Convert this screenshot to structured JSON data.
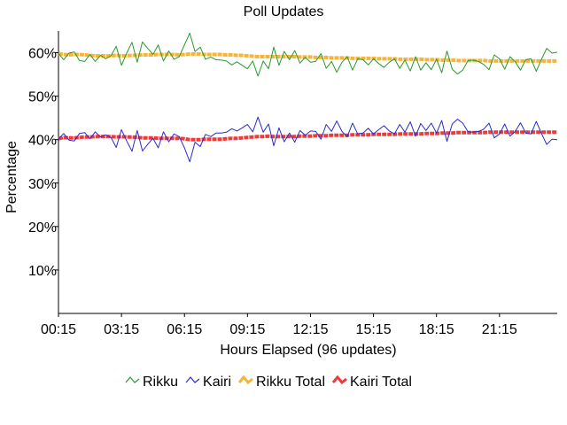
{
  "chart_data": {
    "type": "line",
    "title": "Poll Updates",
    "xlabel": "Hours Elapsed (96 updates)",
    "ylabel": "Percentage",
    "xlim": [
      0,
      95
    ],
    "ylim": [
      0,
      65
    ],
    "yticks": [
      {
        "value": 10,
        "label": "10%"
      },
      {
        "value": 20,
        "label": "20%"
      },
      {
        "value": 30,
        "label": "30%"
      },
      {
        "value": 40,
        "label": "40%"
      },
      {
        "value": 50,
        "label": "50%"
      },
      {
        "value": 60,
        "label": "60%"
      }
    ],
    "xticks": [
      {
        "value": 0,
        "label": "00:15"
      },
      {
        "value": 12,
        "label": "03:15"
      },
      {
        "value": 24,
        "label": "06:15"
      },
      {
        "value": 36,
        "label": "09:15"
      },
      {
        "value": 48,
        "label": "12:15"
      },
      {
        "value": 60,
        "label": "15:15"
      },
      {
        "value": 72,
        "label": "18:15"
      },
      {
        "value": 84,
        "label": "21:15"
      }
    ],
    "grid": false,
    "legend": "bottom",
    "series": [
      {
        "name": "Rikku",
        "color": "#2a9a2a",
        "style": "thin",
        "values": [
          59.8,
          58.4,
          59.9,
          60.2,
          58.2,
          58.0,
          59.6,
          58.0,
          59.4,
          58.6,
          59.3,
          61.5,
          57.1,
          59.9,
          62.4,
          57.8,
          62.5,
          61.0,
          59.6,
          61.8,
          58.1,
          60.4,
          58.5,
          59.1,
          61.8,
          64.5,
          60.3,
          61.3,
          58.5,
          59.0,
          58.4,
          58.3,
          58.1,
          57.2,
          57.9,
          57.1,
          56.3,
          58.1,
          54.6,
          58.1,
          56.3,
          61.3,
          57.1,
          60.3,
          58.4,
          60.5,
          57.6,
          58.9,
          57.8,
          58.0,
          59.8,
          56.4,
          58.0,
          55.5,
          57.8,
          59.1,
          56.0,
          58.6,
          58.4,
          57.2,
          58.6,
          57.5,
          56.6,
          57.8,
          58.6,
          56.4,
          58.3,
          55.8,
          59.1,
          56.0,
          57.7,
          56.1,
          58.5,
          55.4,
          60.4,
          56.2,
          55.1,
          56.0,
          58.2,
          58.3,
          58.0,
          57.3,
          56.1,
          59.5,
          58.6,
          56.2,
          59.1,
          57.9,
          56.0,
          58.4,
          58.6,
          55.7,
          58.5,
          61.0,
          59.9,
          60.1
        ]
      },
      {
        "name": "Kairi",
        "color": "#2a2ad0",
        "style": "thin",
        "values": [
          40.2,
          41.4,
          39.9,
          39.7,
          41.4,
          41.6,
          40.2,
          41.8,
          40.6,
          41.1,
          40.5,
          38.2,
          42.3,
          39.7,
          37.3,
          42.1,
          37.4,
          38.9,
          40.3,
          38.1,
          41.8,
          39.5,
          41.3,
          40.7,
          38.1,
          34.9,
          39.4,
          38.4,
          41.2,
          40.7,
          41.5,
          41.5,
          41.7,
          42.5,
          42.0,
          42.7,
          43.5,
          41.8,
          45.2,
          41.7,
          43.6,
          38.6,
          42.7,
          39.5,
          41.5,
          39.4,
          42.1,
          41.0,
          42.0,
          41.9,
          40.1,
          43.5,
          41.9,
          44.3,
          41.9,
          40.6,
          43.8,
          41.3,
          41.5,
          42.6,
          41.3,
          42.3,
          43.2,
          42.0,
          41.3,
          43.5,
          41.7,
          44.1,
          40.8,
          43.7,
          42.1,
          43.8,
          41.5,
          44.4,
          39.6,
          43.6,
          44.7,
          43.8,
          41.8,
          41.7,
          41.9,
          42.4,
          43.8,
          40.4,
          41.3,
          43.6,
          40.8,
          41.9,
          43.9,
          41.5,
          41.3,
          44.2,
          41.4,
          38.9,
          40.1,
          40.0
        ]
      },
      {
        "name": "Rikku Total",
        "color": "#f5b43a",
        "style": "thick",
        "values": [
          59.8,
          59.6,
          59.5,
          59.6,
          59.6,
          59.5,
          59.4,
          59.3,
          59.3,
          59.3,
          59.3,
          59.4,
          59.3,
          59.3,
          59.4,
          59.4,
          59.5,
          59.5,
          59.5,
          59.6,
          59.6,
          59.6,
          59.6,
          59.5,
          59.6,
          59.7,
          59.7,
          59.7,
          59.6,
          59.6,
          59.6,
          59.6,
          59.5,
          59.5,
          59.4,
          59.4,
          59.3,
          59.2,
          59.1,
          59.1,
          59.1,
          59.1,
          59.1,
          59.1,
          59.1,
          59.1,
          59.0,
          59.0,
          59.0,
          58.9,
          58.9,
          58.9,
          58.8,
          58.8,
          58.8,
          58.8,
          58.7,
          58.7,
          58.7,
          58.7,
          58.7,
          58.6,
          58.6,
          58.6,
          58.6,
          58.5,
          58.5,
          58.5,
          58.5,
          58.5,
          58.4,
          58.4,
          58.4,
          58.3,
          58.3,
          58.3,
          58.2,
          58.2,
          58.2,
          58.2,
          58.2,
          58.2,
          58.1,
          58.1,
          58.1,
          58.1,
          58.1,
          58.1,
          58.1,
          58.1,
          58.1,
          58.1,
          58.1,
          58.1,
          58.1,
          58.1
        ]
      },
      {
        "name": "Kairi Total",
        "color": "#f03a3a",
        "style": "thick",
        "values": [
          40.2,
          40.5,
          40.4,
          40.4,
          40.5,
          40.6,
          40.6,
          40.7,
          40.7,
          40.7,
          40.7,
          40.6,
          40.7,
          40.6,
          40.6,
          40.5,
          40.4,
          40.4,
          40.4,
          40.3,
          40.3,
          40.3,
          40.3,
          40.3,
          40.2,
          40.0,
          40.0,
          40.0,
          40.1,
          40.1,
          40.1,
          40.1,
          40.2,
          40.3,
          40.3,
          40.4,
          40.5,
          40.6,
          40.7,
          40.7,
          40.8,
          40.7,
          40.7,
          40.7,
          40.7,
          40.7,
          40.8,
          40.8,
          40.8,
          40.9,
          40.9,
          40.9,
          41.0,
          41.0,
          41.0,
          41.0,
          41.1,
          41.1,
          41.1,
          41.1,
          41.2,
          41.2,
          41.2,
          41.2,
          41.2,
          41.3,
          41.3,
          41.3,
          41.3,
          41.3,
          41.4,
          41.4,
          41.4,
          41.5,
          41.5,
          41.5,
          41.6,
          41.6,
          41.6,
          41.6,
          41.6,
          41.6,
          41.7,
          41.7,
          41.7,
          41.7,
          41.7,
          41.7,
          41.7,
          41.7,
          41.7,
          41.7,
          41.7,
          41.7,
          41.7,
          41.7
        ]
      }
    ]
  }
}
